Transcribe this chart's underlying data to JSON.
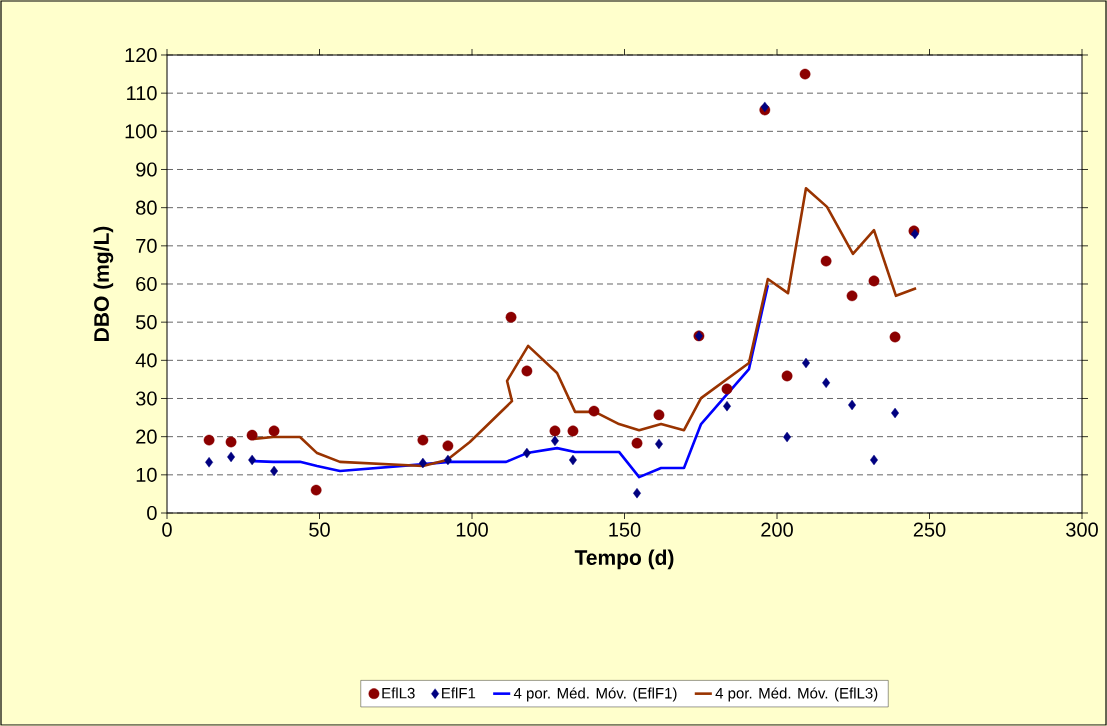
{
  "chart_data": {
    "type": "scatter",
    "xlabel": "Tempo (d)",
    "ylabel": "DBO (mg/L)",
    "xlim": [
      0,
      300
    ],
    "xticks": [
      0,
      50,
      100,
      150,
      200,
      250,
      300
    ],
    "ylim": [
      0,
      120
    ],
    "yticks": [
      0,
      10,
      20,
      30,
      40,
      50,
      60,
      70,
      80,
      90,
      100,
      110,
      120
    ],
    "grid": "y",
    "legend": "bottom",
    "series": [
      {
        "name": "EflL3",
        "marker": "circle",
        "color": "#8b0000",
        "x": [
          13.8,
          21,
          27.9,
          35.1,
          48.9,
          83.9,
          92.1,
          112.8,
          118,
          127.2,
          133.1,
          140,
          154.1,
          161.3,
          174.4,
          183.6,
          196,
          203.3,
          209.2,
          216.1,
          224.6,
          231.8,
          238.7,
          244.9
        ],
        "values": [
          19.1,
          18.6,
          20.4,
          21.5,
          6.0,
          19.1,
          17.6,
          51.3,
          37.2,
          21.5,
          21.5,
          26.7,
          18.3,
          25.7,
          46.4,
          32.5,
          105.6,
          35.9,
          115,
          66,
          56.9,
          60.8,
          46.1,
          73.9
        ]
      },
      {
        "name": "EflF1",
        "marker": "diamond",
        "color": "#000080",
        "x": [
          13.8,
          21,
          27.9,
          35.1,
          83.9,
          92.1,
          118,
          127.2,
          133.1,
          154.1,
          161.3,
          174.4,
          183.6,
          196,
          203.3,
          209.5,
          216.1,
          224.6,
          231.8,
          238.7,
          245.2
        ],
        "values": [
          13.3,
          14.7,
          13.9,
          11.0,
          13.1,
          13.9,
          15.7,
          18.9,
          13.9,
          5.2,
          18.1,
          46.4,
          28.0,
          106.4,
          19.9,
          39.3,
          34.1,
          28.3,
          13.9,
          26.2,
          73.1
        ]
      },
      {
        "name": "4 por. Méd. Móv. (EflF1)",
        "type": "line",
        "marker": "none",
        "color": "#0000ff",
        "x": [
          28.2,
          34.8,
          43.6,
          49.2,
          56.7,
          84.3,
          92.5,
          111.2,
          118,
          127.9,
          133.8,
          148.2,
          154.8,
          162,
          169.5,
          175.1,
          190.8,
          197
        ],
        "values": [
          13.6,
          13.4,
          13.4,
          12.3,
          11.0,
          12.8,
          13.4,
          13.4,
          15.7,
          17.0,
          16.0,
          16.0,
          9.4,
          11.8,
          11.8,
          23.3,
          37.7,
          59.7
        ]
      },
      {
        "name": "4 por. Méd. Móv. (EflL3)",
        "type": "line",
        "marker": "none",
        "color": "#993300",
        "x": [
          28.2,
          34.8,
          43.6,
          49.2,
          56.7,
          83.9,
          91.8,
          99.3,
          113.1,
          111.5,
          118.4,
          127.9,
          133.8,
          140.3,
          148.2,
          154.8,
          162,
          169.5,
          175.1,
          190.8,
          197,
          203.6,
          209.5,
          216.4,
          224.9,
          231.8,
          239,
          245.6
        ],
        "values": [
          19.4,
          19.9,
          19.9,
          15.7,
          13.4,
          12.3,
          13.9,
          18.6,
          29.3,
          34.6,
          43.8,
          36.7,
          26.5,
          26.5,
          23.3,
          21.7,
          23.3,
          21.7,
          30.1,
          39.3,
          61.3,
          57.6,
          85.1,
          80.2,
          67.9,
          74.1,
          56.9,
          58.9
        ]
      }
    ]
  }
}
